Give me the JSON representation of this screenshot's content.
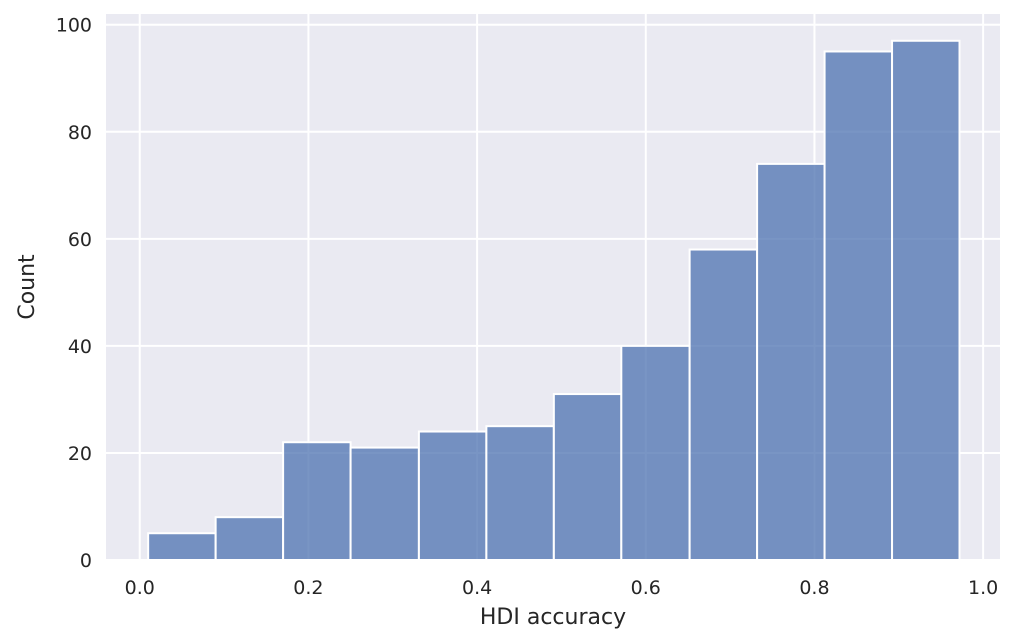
{
  "chart_data": {
    "type": "bar",
    "subtype": "histogram",
    "xlabel": "HDI accuracy",
    "ylabel": "Count",
    "xlim": [
      -0.04,
      1.02
    ],
    "ylim": [
      0,
      102
    ],
    "xticks": [
      0.0,
      0.2,
      0.4,
      0.6,
      0.8,
      1.0
    ],
    "xtick_labels": [
      "0.0",
      "0.2",
      "0.4",
      "0.6",
      "0.8",
      "1.0"
    ],
    "yticks": [
      0,
      20,
      40,
      60,
      80,
      100
    ],
    "ytick_labels": [
      "0",
      "20",
      "40",
      "60",
      "80",
      "100"
    ],
    "grid": true,
    "background_color": "#eaeaf2",
    "bar_color": "#4c72b0",
    "bins": [
      {
        "x0": 0.01,
        "x1": 0.09,
        "count": 5
      },
      {
        "x0": 0.09,
        "x1": 0.17,
        "count": 8
      },
      {
        "x0": 0.17,
        "x1": 0.25,
        "count": 22
      },
      {
        "x0": 0.25,
        "x1": 0.331,
        "count": 21
      },
      {
        "x0": 0.331,
        "x1": 0.411,
        "count": 24
      },
      {
        "x0": 0.411,
        "x1": 0.491,
        "count": 25
      },
      {
        "x0": 0.491,
        "x1": 0.571,
        "count": 31
      },
      {
        "x0": 0.571,
        "x1": 0.652,
        "count": 40
      },
      {
        "x0": 0.652,
        "x1": 0.732,
        "count": 58
      },
      {
        "x0": 0.732,
        "x1": 0.812,
        "count": 74
      },
      {
        "x0": 0.812,
        "x1": 0.892,
        "count": 95
      },
      {
        "x0": 0.892,
        "x1": 0.972,
        "count": 97
      }
    ]
  }
}
